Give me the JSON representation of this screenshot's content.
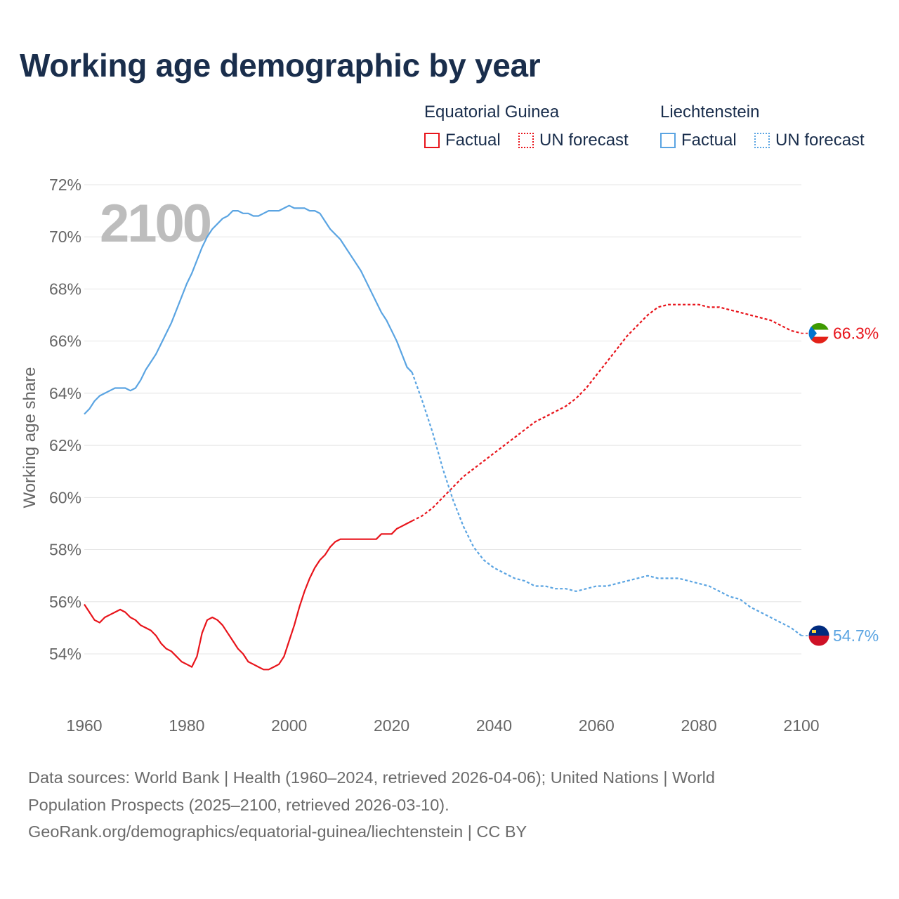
{
  "title": "Working age demographic by year",
  "legend": {
    "groups": [
      {
        "country": "Equatorial Guinea",
        "factual": "Factual",
        "forecast": "UN forecast",
        "color": "#e8141b"
      },
      {
        "country": "Liechtenstein",
        "factual": "Factual",
        "forecast": "UN forecast",
        "color": "#5aa4e2"
      }
    ]
  },
  "year_watermark": "2100",
  "footer": {
    "line1": "Data sources: World Bank | Health (1960–2024, retrieved 2026-04-06); United Nations | World",
    "line2": "Population Prospects (2025–2100, retrieved 2026-03-10).",
    "line3": "GeoRank.org/demographics/equatorial-guinea/liechtenstein | CC BY"
  },
  "chart_data": {
    "type": "line",
    "title": "Working age demographic by year",
    "xlabel": "",
    "ylabel": "Working age share",
    "xlim": [
      1960,
      2100
    ],
    "ylim": [
      52.2,
      72.2
    ],
    "x_ticks": [
      1960,
      1980,
      2000,
      2020,
      2040,
      2060,
      2080,
      2100
    ],
    "y_ticks": [
      54,
      56,
      58,
      60,
      62,
      64,
      66,
      68,
      70,
      72
    ],
    "y_tick_labels": [
      "54%",
      "56%",
      "58%",
      "60%",
      "62%",
      "64%",
      "66%",
      "68%",
      "70%",
      "72%"
    ],
    "x_tick_labels": [
      "1960",
      "1980",
      "2000",
      "2020",
      "2040",
      "2060",
      "2080",
      "2100"
    ],
    "grid": true,
    "series": [
      {
        "name": "Equatorial Guinea",
        "color": "#e8141b",
        "end_label": "66.3%",
        "factual": {
          "x": [
            1960,
            1961,
            1962,
            1963,
            1964,
            1965,
            1966,
            1967,
            1968,
            1969,
            1970,
            1971,
            1972,
            1973,
            1974,
            1975,
            1976,
            1977,
            1978,
            1979,
            1980,
            1981,
            1982,
            1983,
            1984,
            1985,
            1986,
            1987,
            1988,
            1989,
            1990,
            1991,
            1992,
            1993,
            1994,
            1995,
            1996,
            1997,
            1998,
            1999,
            2000,
            2001,
            2002,
            2003,
            2004,
            2005,
            2006,
            2007,
            2008,
            2009,
            2010,
            2011,
            2012,
            2013,
            2014,
            2015,
            2016,
            2017,
            2018,
            2019,
            2020,
            2021,
            2022,
            2023,
            2024
          ],
          "y": [
            55.9,
            55.6,
            55.3,
            55.2,
            55.4,
            55.5,
            55.6,
            55.7,
            55.6,
            55.4,
            55.3,
            55.1,
            55.0,
            54.9,
            54.7,
            54.4,
            54.2,
            54.1,
            53.9,
            53.7,
            53.6,
            53.5,
            53.9,
            54.8,
            55.3,
            55.4,
            55.3,
            55.1,
            54.8,
            54.5,
            54.2,
            54.0,
            53.7,
            53.6,
            53.5,
            53.4,
            53.4,
            53.5,
            53.6,
            53.9,
            54.5,
            55.1,
            55.8,
            56.4,
            56.9,
            57.3,
            57.6,
            57.8,
            58.1,
            58.3,
            58.4,
            58.4,
            58.4,
            58.4,
            58.4,
            58.4,
            58.4,
            58.4,
            58.6,
            58.6,
            58.6,
            58.8,
            58.9,
            59.0,
            59.1
          ]
        },
        "forecast": {
          "x": [
            2024,
            2026,
            2028,
            2030,
            2032,
            2034,
            2036,
            2038,
            2040,
            2042,
            2044,
            2046,
            2048,
            2050,
            2052,
            2054,
            2056,
            2058,
            2060,
            2062,
            2064,
            2066,
            2068,
            2070,
            2072,
            2074,
            2076,
            2078,
            2080,
            2082,
            2084,
            2086,
            2088,
            2090,
            2092,
            2094,
            2096,
            2098,
            2100
          ],
          "y": [
            59.1,
            59.3,
            59.6,
            60.0,
            60.4,
            60.8,
            61.1,
            61.4,
            61.7,
            62.0,
            62.3,
            62.6,
            62.9,
            63.1,
            63.3,
            63.5,
            63.8,
            64.2,
            64.7,
            65.2,
            65.7,
            66.2,
            66.6,
            67.0,
            67.3,
            67.4,
            67.4,
            67.4,
            67.4,
            67.3,
            67.3,
            67.2,
            67.1,
            67.0,
            66.9,
            66.8,
            66.6,
            66.4,
            66.3
          ]
        }
      },
      {
        "name": "Liechtenstein",
        "color": "#5aa4e2",
        "end_label": "54.7%",
        "factual": {
          "x": [
            1960,
            1961,
            1962,
            1963,
            1964,
            1965,
            1966,
            1967,
            1968,
            1969,
            1970,
            1971,
            1972,
            1973,
            1974,
            1975,
            1976,
            1977,
            1978,
            1979,
            1980,
            1981,
            1982,
            1983,
            1984,
            1985,
            1986,
            1987,
            1988,
            1989,
            1990,
            1991,
            1992,
            1993,
            1994,
            1995,
            1996,
            1997,
            1998,
            1999,
            2000,
            2001,
            2002,
            2003,
            2004,
            2005,
            2006,
            2007,
            2008,
            2009,
            2010,
            2011,
            2012,
            2013,
            2014,
            2015,
            2016,
            2017,
            2018,
            2019,
            2020,
            2021,
            2022,
            2023,
            2024
          ],
          "y": [
            63.2,
            63.4,
            63.7,
            63.9,
            64.0,
            64.1,
            64.2,
            64.2,
            64.2,
            64.1,
            64.2,
            64.5,
            64.9,
            65.2,
            65.5,
            65.9,
            66.3,
            66.7,
            67.2,
            67.7,
            68.2,
            68.6,
            69.1,
            69.6,
            70.0,
            70.3,
            70.5,
            70.7,
            70.8,
            71.0,
            71.0,
            70.9,
            70.9,
            70.8,
            70.8,
            70.9,
            71.0,
            71.0,
            71.0,
            71.1,
            71.2,
            71.1,
            71.1,
            71.1,
            71.0,
            71.0,
            70.9,
            70.6,
            70.3,
            70.1,
            69.9,
            69.6,
            69.3,
            69.0,
            68.7,
            68.3,
            67.9,
            67.5,
            67.1,
            66.8,
            66.4,
            66.0,
            65.5,
            65.0,
            64.8
          ]
        },
        "forecast": {
          "x": [
            2024,
            2026,
            2028,
            2030,
            2032,
            2034,
            2036,
            2038,
            2040,
            2042,
            2044,
            2046,
            2048,
            2050,
            2052,
            2054,
            2056,
            2058,
            2060,
            2062,
            2064,
            2066,
            2068,
            2070,
            2072,
            2074,
            2076,
            2078,
            2080,
            2082,
            2084,
            2086,
            2088,
            2090,
            2092,
            2094,
            2096,
            2098,
            2100
          ],
          "y": [
            64.8,
            63.7,
            62.5,
            61.1,
            59.9,
            58.9,
            58.1,
            57.6,
            57.3,
            57.1,
            56.9,
            56.8,
            56.6,
            56.6,
            56.5,
            56.5,
            56.4,
            56.5,
            56.6,
            56.6,
            56.7,
            56.8,
            56.9,
            57.0,
            56.9,
            56.9,
            56.9,
            56.8,
            56.7,
            56.6,
            56.4,
            56.2,
            56.1,
            55.8,
            55.6,
            55.4,
            55.2,
            55.0,
            54.7
          ]
        }
      }
    ]
  }
}
